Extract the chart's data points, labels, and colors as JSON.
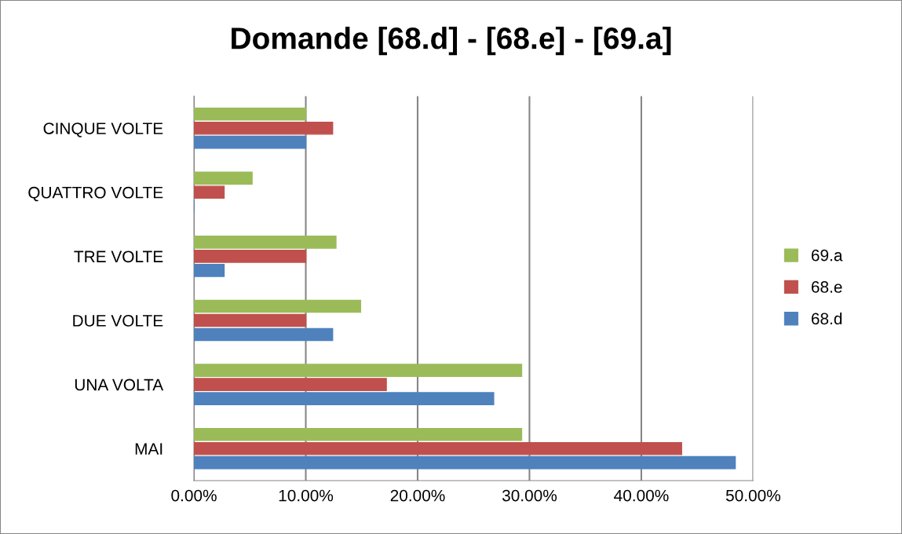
{
  "chart_data": {
    "type": "bar",
    "orientation": "horizontal",
    "title": "Domande [68.d] - [68.e] - [69.a]",
    "categories": [
      "CINQUE VOLTE",
      "QUATTRO VOLTE",
      "TRE VOLTE",
      "DUE VOLTE",
      "UNA VOLTA",
      "MAI"
    ],
    "series": [
      {
        "name": "68.d",
        "color": "#4f81bd",
        "values": [
          10.0,
          0,
          2.7,
          12.4,
          26.8,
          48.4
        ]
      },
      {
        "name": "68.e",
        "color": "#c0504d",
        "values": [
          12.4,
          2.7,
          10.0,
          10.0,
          17.2,
          43.6
        ]
      },
      {
        "name": "69.a",
        "color": "#9bbb59",
        "values": [
          10.0,
          5.2,
          12.7,
          14.9,
          29.3,
          29.3
        ]
      }
    ],
    "xlim": [
      0,
      50
    ],
    "xticks": [
      {
        "value": 0,
        "label": "0.00%"
      },
      {
        "value": 10,
        "label": "10.00%"
      },
      {
        "value": 20,
        "label": "20.00%"
      },
      {
        "value": 30,
        "label": "30.00%"
      },
      {
        "value": 40,
        "label": "40.00%"
      },
      {
        "value": 50,
        "label": "50.00%"
      }
    ],
    "grid": "x",
    "legend": "right"
  }
}
